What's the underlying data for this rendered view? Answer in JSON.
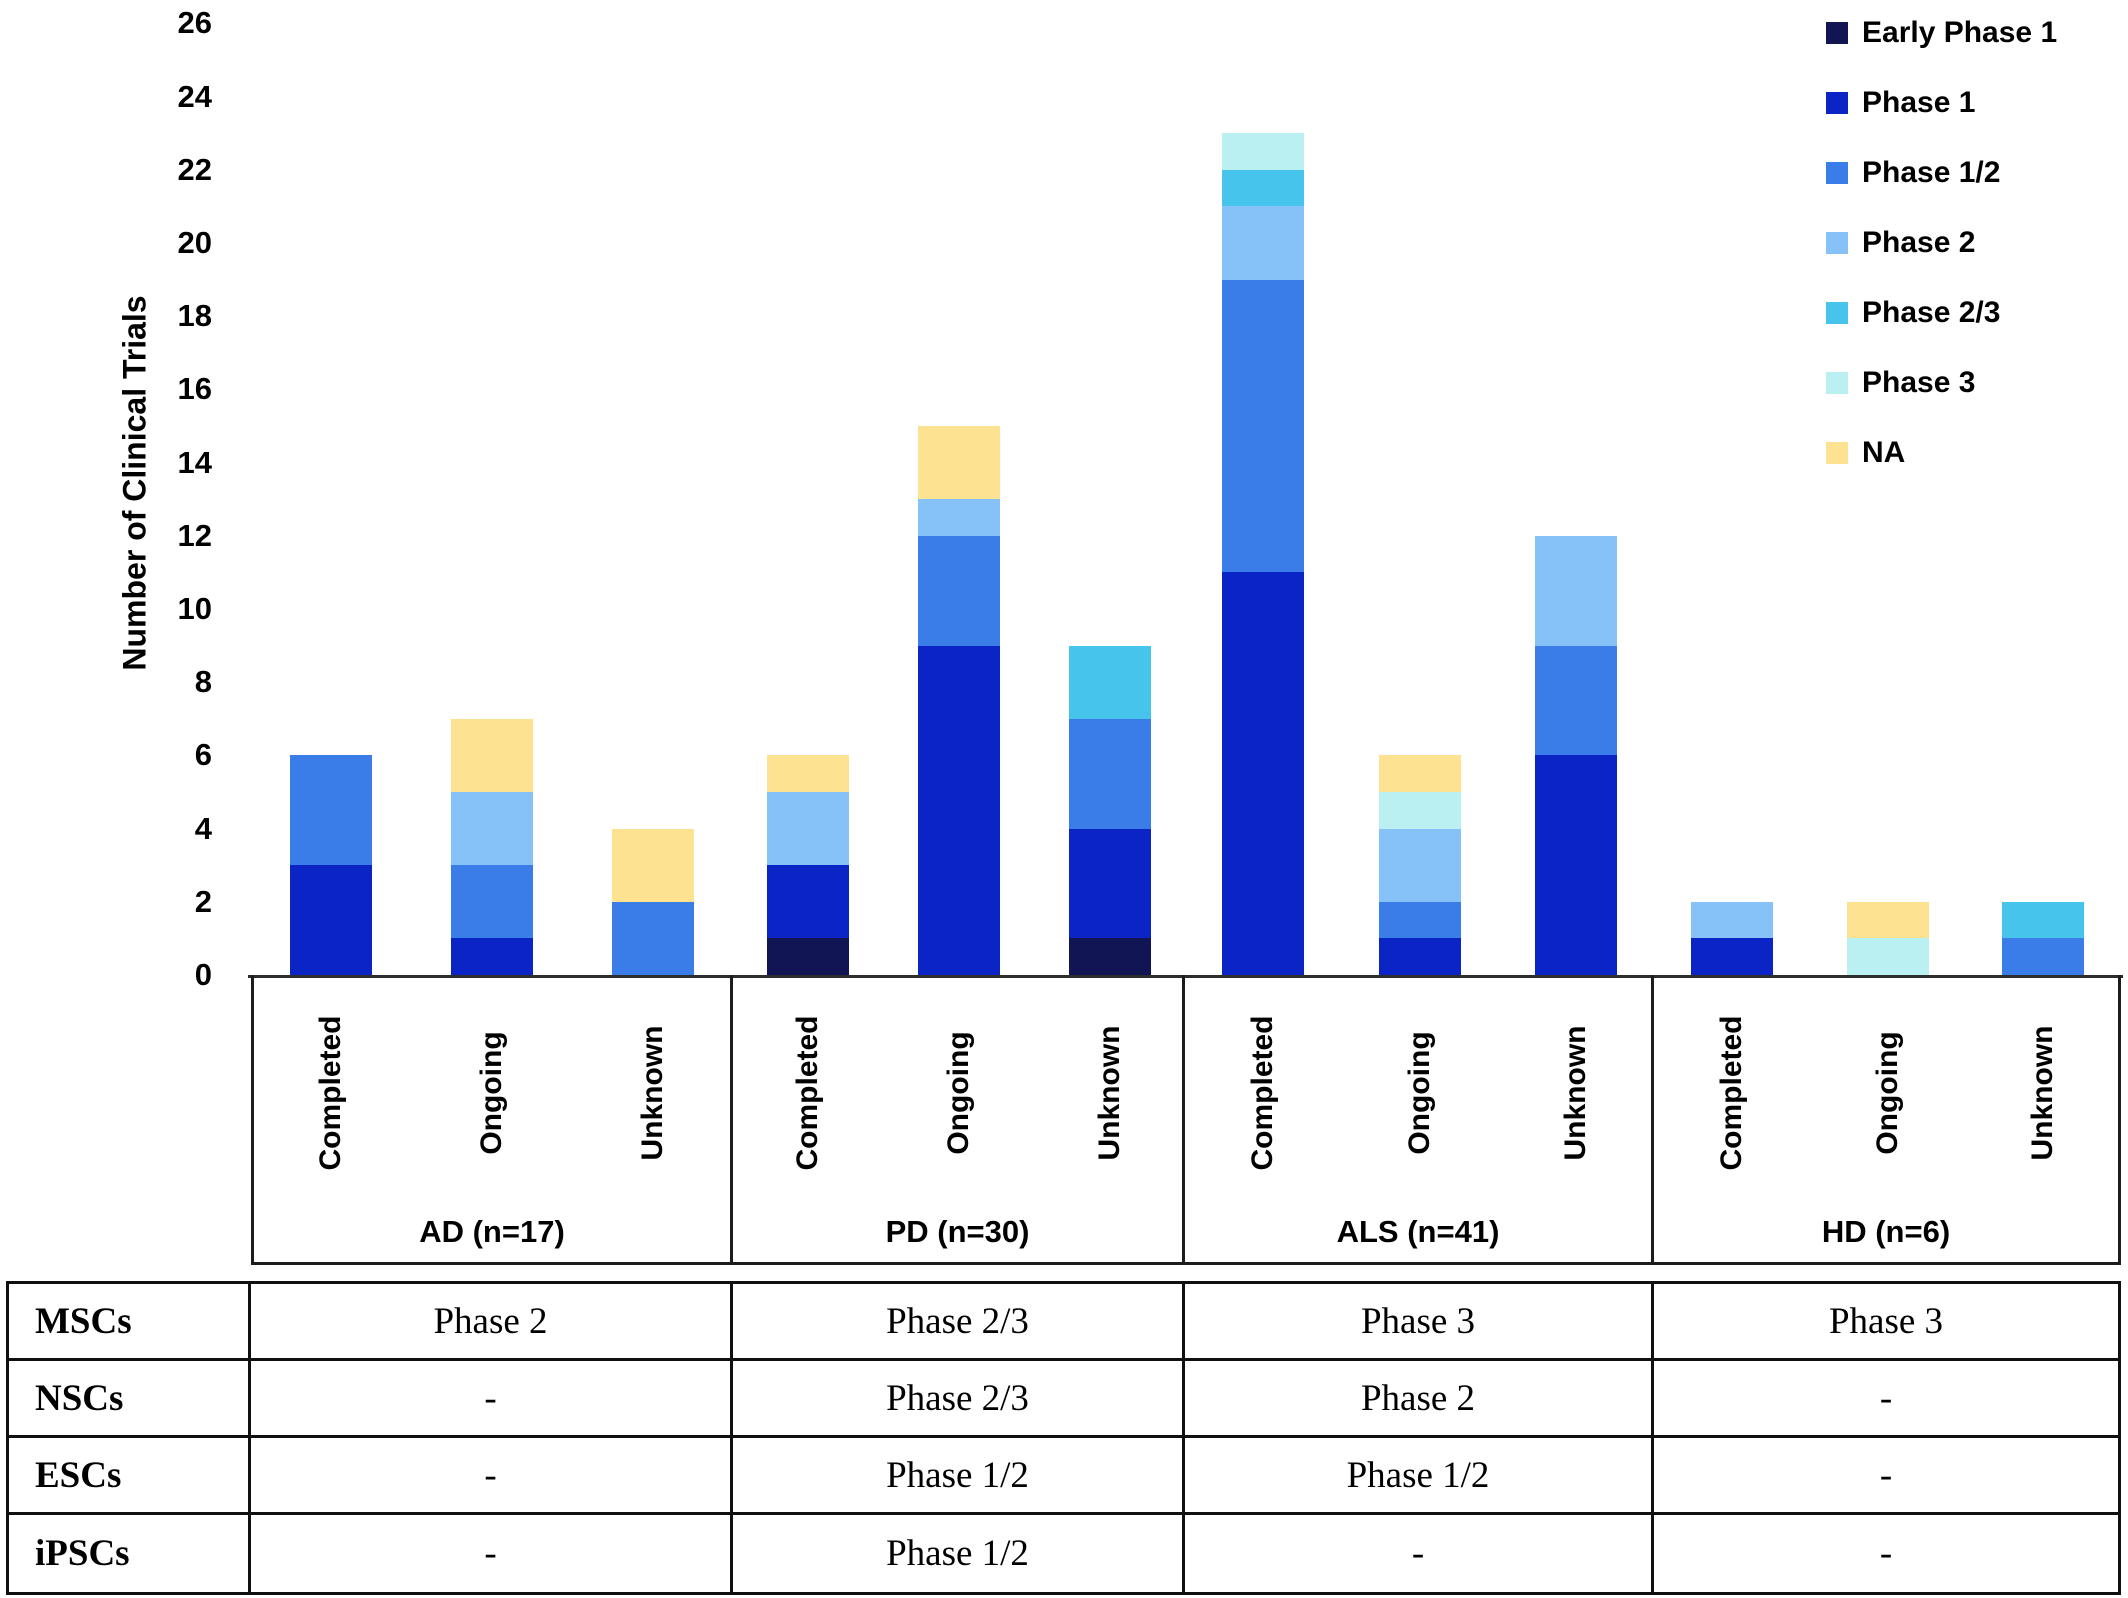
{
  "chart_data": {
    "type": "bar",
    "stacked": true,
    "title": "",
    "ylabel": "Number of Clinical Trials",
    "xlabel": "",
    "ylim": [
      0,
      26
    ],
    "ytick_step": 2,
    "grid": false,
    "legend_position": "top-right",
    "phases": [
      {
        "name": "Early Phase 1",
        "color": "#111553"
      },
      {
        "name": "Phase 1",
        "color": "#0A24C6"
      },
      {
        "name": "Phase 1/2",
        "color": "#3B7DE8"
      },
      {
        "name": "Phase 2",
        "color": "#86C2F7"
      },
      {
        "name": "Phase 2/3",
        "color": "#46C4EC"
      },
      {
        "name": "Phase 3",
        "color": "#BBF0F2"
      },
      {
        "name": "NA",
        "color": "#FDE291"
      }
    ],
    "statuses": [
      "Completed",
      "Ongoing",
      "Unknown"
    ],
    "groups": [
      {
        "label": "AD (n=17)",
        "bars": [
          {
            "status": "Completed",
            "segments": [
              {
                "phase": "Phase 1",
                "value": 3
              },
              {
                "phase": "Phase 1/2",
                "value": 3
              }
            ]
          },
          {
            "status": "Ongoing",
            "segments": [
              {
                "phase": "Phase 1",
                "value": 1
              },
              {
                "phase": "Phase 1/2",
                "value": 2
              },
              {
                "phase": "Phase 2",
                "value": 2
              },
              {
                "phase": "NA",
                "value": 2
              }
            ]
          },
          {
            "status": "Unknown",
            "segments": [
              {
                "phase": "Phase 1/2",
                "value": 2
              },
              {
                "phase": "NA",
                "value": 2
              }
            ]
          }
        ]
      },
      {
        "label": "PD (n=30)",
        "bars": [
          {
            "status": "Completed",
            "segments": [
              {
                "phase": "Early Phase 1",
                "value": 1
              },
              {
                "phase": "Phase 1",
                "value": 2
              },
              {
                "phase": "Phase 2",
                "value": 2
              },
              {
                "phase": "NA",
                "value": 1
              }
            ]
          },
          {
            "status": "Ongoing",
            "segments": [
              {
                "phase": "Phase 1",
                "value": 9
              },
              {
                "phase": "Phase 1/2",
                "value": 3
              },
              {
                "phase": "Phase 2",
                "value": 1
              },
              {
                "phase": "NA",
                "value": 2
              }
            ]
          },
          {
            "status": "Unknown",
            "segments": [
              {
                "phase": "Early Phase 1",
                "value": 1
              },
              {
                "phase": "Phase 1",
                "value": 3
              },
              {
                "phase": "Phase 1/2",
                "value": 3
              },
              {
                "phase": "Phase 2/3",
                "value": 2
              }
            ]
          }
        ]
      },
      {
        "label": "ALS (n=41)",
        "bars": [
          {
            "status": "Completed",
            "segments": [
              {
                "phase": "Phase 1",
                "value": 11
              },
              {
                "phase": "Phase 1/2",
                "value": 8
              },
              {
                "phase": "Phase 2",
                "value": 2
              },
              {
                "phase": "Phase 2/3",
                "value": 1
              },
              {
                "phase": "Phase 3",
                "value": 1
              }
            ]
          },
          {
            "status": "Ongoing",
            "segments": [
              {
                "phase": "Phase 1",
                "value": 1
              },
              {
                "phase": "Phase 1/2",
                "value": 1
              },
              {
                "phase": "Phase 2",
                "value": 2
              },
              {
                "phase": "Phase 3",
                "value": 1
              },
              {
                "phase": "NA",
                "value": 1
              }
            ]
          },
          {
            "status": "Unknown",
            "segments": [
              {
                "phase": "Phase 1",
                "value": 6
              },
              {
                "phase": "Phase 1/2",
                "value": 3
              },
              {
                "phase": "Phase 2",
                "value": 3
              }
            ]
          }
        ]
      },
      {
        "label": "HD (n=6)",
        "bars": [
          {
            "status": "Completed",
            "segments": [
              {
                "phase": "Phase 1",
                "value": 1
              },
              {
                "phase": "Phase 2",
                "value": 1
              }
            ]
          },
          {
            "status": "Ongoing",
            "segments": [
              {
                "phase": "Phase 3",
                "value": 1
              },
              {
                "phase": "NA",
                "value": 1
              }
            ]
          },
          {
            "status": "Unknown",
            "segments": [
              {
                "phase": "Phase 1/2",
                "value": 1
              },
              {
                "phase": "Phase 2/3",
                "value": 1
              }
            ]
          }
        ]
      }
    ]
  },
  "table": {
    "rows": [
      {
        "header": "MSCs",
        "cells": [
          "Phase 2",
          "Phase 2/3",
          "Phase 3",
          "Phase 3"
        ]
      },
      {
        "header": "NSCs",
        "cells": [
          "-",
          "Phase 2/3",
          "Phase 2",
          "-"
        ]
      },
      {
        "header": "ESCs",
        "cells": [
          "-",
          "Phase 1/2",
          "Phase 1/2",
          "-"
        ]
      },
      {
        "header": "iPSCs",
        "cells": [
          "-",
          "Phase 1/2",
          "-",
          "-"
        ]
      }
    ]
  }
}
